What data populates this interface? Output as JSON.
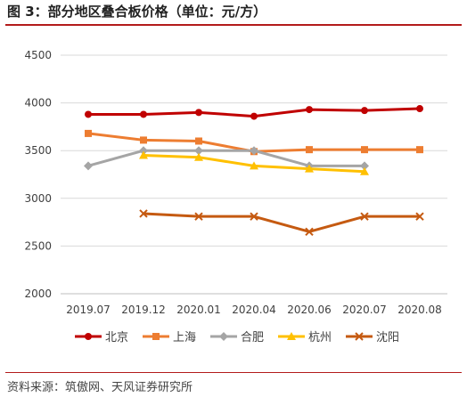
{
  "header": {
    "title": "图 3：部分地区叠合板价格（单位：元/方）"
  },
  "footer": {
    "source": "资料来源：筑傲网、天风证券研究所"
  },
  "chart_data": {
    "type": "line",
    "categories": [
      "2019.07",
      "2019.12",
      "2020.01",
      "2020.04",
      "2020.06",
      "2020.07",
      "2020.08"
    ],
    "ylim": [
      2000,
      4500
    ],
    "yticks": [
      2000,
      2500,
      3000,
      3500,
      4000,
      4500
    ],
    "grid": true,
    "legend_position": "bottom",
    "series": [
      {
        "name": "北京",
        "color": "#c00000",
        "marker": "circle",
        "values": [
          3880,
          3880,
          3900,
          3860,
          3930,
          3920,
          3940
        ]
      },
      {
        "name": "上海",
        "color": "#ed7d31",
        "marker": "square",
        "values": [
          3680,
          3610,
          3600,
          3490,
          3510,
          3510,
          3510
        ]
      },
      {
        "name": "合肥",
        "color": "#a5a5a5",
        "marker": "diamond",
        "values": [
          3340,
          3500,
          3500,
          3500,
          3340,
          3340,
          null
        ]
      },
      {
        "name": "杭州",
        "color": "#ffc000",
        "marker": "triangle",
        "values": [
          null,
          3450,
          3430,
          3340,
          3310,
          3280,
          null
        ]
      },
      {
        "name": "沈阳",
        "color": "#c55a11",
        "marker": "x",
        "values": [
          null,
          2840,
          2810,
          2810,
          2650,
          2810,
          2810
        ]
      }
    ]
  }
}
